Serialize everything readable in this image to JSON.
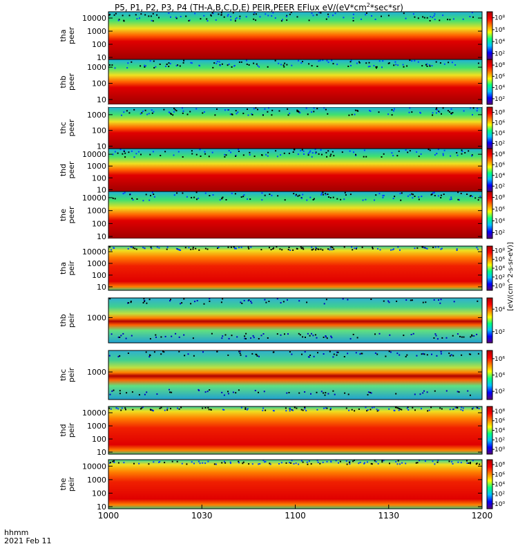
{
  "figure": {
    "title_main": "P5, P1, P2, P3, P4 (TH-A,B,C,D,E) PEIR,PEER EFlux eV/(eV*cm",
    "title_sup": "2",
    "title_tail": "*sec*sr)",
    "time_axis_label": "hhmm",
    "date_label": "2021 Feb 11",
    "colorbar_unit_text": "[eV/(cm^2-s-sr-eV)]",
    "colors": {
      "background": "#ffffff",
      "frame": "#000000",
      "data_gap": "#ffffff"
    }
  },
  "chart_data": {
    "type": "heatmap",
    "title": "P5, P1, P2, P3, P4 (TH-A,B,C,D,E) PEIR,PEER EFlux eV/(eV*cm2*sec*sr)",
    "x_axis": {
      "label": "hhmm",
      "range": [
        "1000",
        "1200"
      ],
      "ticks": [
        "1000",
        "1030",
        "1100",
        "1130",
        "1200"
      ]
    },
    "y_scale": "log",
    "z_scale": "log",
    "colormap": [
      "#5a0078",
      "#0000ff",
      "#00bfff",
      "#00ff80",
      "#ffff00",
      "#ff8000",
      "#ff0000",
      "#a80000"
    ],
    "colorbar_label": "[eV/(cm^2-s-sr-eV)]",
    "panels": [
      {
        "probe": "tha",
        "label1": "tha",
        "label2": "peer",
        "y_ticks": [
          "10",
          "100",
          "1000",
          "10000"
        ],
        "y_range": [
          7,
          30000
        ],
        "colorbar_ticks": [
          "10²",
          "10⁴",
          "10⁶",
          "10⁸"
        ],
        "z_range": [
          10,
          100000000
        ]
      },
      {
        "probe": "thb",
        "label1": "thb",
        "label2": "peer",
        "y_ticks": [
          "10",
          "100",
          "1000"
        ],
        "y_range": [
          5,
          3000
        ],
        "colorbar_ticks": [
          "10²",
          "10⁴",
          "10⁶",
          "10⁸"
        ],
        "z_range": [
          10,
          100000000
        ]
      },
      {
        "probe": "thc",
        "label1": "thc",
        "label2": "peer",
        "y_ticks": [
          "10",
          "100",
          "1000"
        ],
        "y_range": [
          7,
          3000
        ],
        "colorbar_ticks": [
          "10²",
          "10⁴",
          "10⁶",
          "10⁸"
        ],
        "z_range": [
          10,
          100000000
        ]
      },
      {
        "probe": "thd",
        "label1": "thd",
        "label2": "peer",
        "y_ticks": [
          "10",
          "100",
          "1000",
          "10000"
        ],
        "y_range": [
          7,
          30000
        ],
        "colorbar_ticks": [
          "10²",
          "10⁴",
          "10⁶",
          "10⁸"
        ],
        "z_range": [
          10,
          100000000
        ]
      },
      {
        "probe": "the",
        "label1": "the",
        "label2": "peer",
        "y_ticks": [
          "10",
          "100",
          "1000",
          "10000"
        ],
        "y_range": [
          7,
          30000
        ],
        "colorbar_ticks": [
          "10²",
          "10⁴",
          "10⁶",
          "10⁸"
        ],
        "z_range": [
          10,
          100000000
        ]
      },
      {
        "probe": "tha",
        "label1": "tha",
        "label2": "peir",
        "y_ticks": [
          "10",
          "100",
          "1000",
          "10000"
        ],
        "y_range": [
          5,
          30000
        ],
        "colorbar_ticks": [
          "10⁰",
          "10²",
          "10⁴",
          "10⁶",
          "10⁸"
        ],
        "z_range": [
          1,
          100000000
        ]
      },
      {
        "probe": "thb",
        "label1": "thb",
        "label2": "peir",
        "y_ticks": [
          "1000"
        ],
        "y_range": [
          100,
          6000
        ],
        "colorbar_ticks": [
          "10²",
          "10⁴"
        ],
        "z_range": [
          10,
          100000
        ]
      },
      {
        "probe": "thc",
        "label1": "thc",
        "label2": "peir",
        "y_ticks": [
          "1000"
        ],
        "y_range": [
          100,
          6000
        ],
        "colorbar_ticks": [
          "10²",
          "10⁴",
          "10⁶"
        ],
        "z_range": [
          10,
          10000000
        ]
      },
      {
        "probe": "thd",
        "label1": "thd",
        "label2": "peir",
        "y_ticks": [
          "10",
          "100",
          "1000",
          "10000"
        ],
        "y_range": [
          7,
          30000
        ],
        "colorbar_ticks": [
          "10⁰",
          "10²",
          "10⁴",
          "10⁶",
          "10⁸"
        ],
        "z_range": [
          1,
          100000000
        ]
      },
      {
        "probe": "the",
        "label1": "the",
        "label2": "peir",
        "y_ticks": [
          "10",
          "100",
          "1000",
          "10000"
        ],
        "y_range": [
          7,
          30000
        ],
        "colorbar_ticks": [
          "10⁰",
          "10²",
          "10⁴",
          "10⁶",
          "10⁸"
        ],
        "z_range": [
          1,
          100000000
        ]
      }
    ]
  }
}
